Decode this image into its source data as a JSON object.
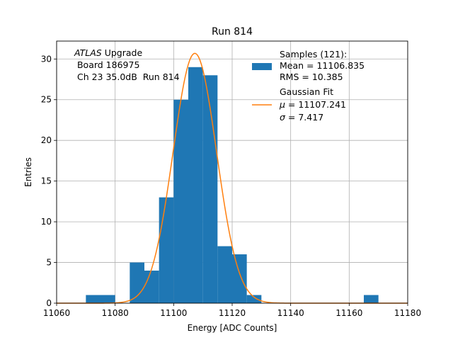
{
  "chart_data": {
    "type": "bar",
    "title": "Run 814",
    "xlabel": "Energy [ADC Counts]",
    "ylabel": "Entries",
    "xlim": [
      11060,
      11180
    ],
    "ylim": [
      0,
      32.2
    ],
    "xticks": [
      11060,
      11080,
      11100,
      11120,
      11140,
      11160,
      11180
    ],
    "yticks": [
      0,
      5,
      10,
      15,
      20,
      25,
      30
    ],
    "grid": true,
    "bin_width": 5,
    "histogram": {
      "bin_starts": [
        11070,
        11075,
        11080,
        11085,
        11090,
        11095,
        11100,
        11105,
        11110,
        11115,
        11120,
        11125,
        11130,
        11135,
        11140,
        11145,
        11150,
        11155,
        11160,
        11165
      ],
      "counts": [
        1,
        1,
        0,
        5,
        4,
        13,
        25,
        29,
        28,
        7,
        6,
        1,
        0,
        0,
        0,
        0,
        0,
        0,
        0,
        1
      ],
      "color": "#1f77b4"
    },
    "fit": {
      "mu": 11107.241,
      "sigma": 7.417,
      "peak": 30.7,
      "color": "#ff7f0e"
    },
    "annotation": {
      "atlas": "ATLAS",
      "upgrade": " Upgrade",
      "line2": " Board 186975",
      "line3": " Ch 23 35.0dB  Run 814"
    },
    "legend": {
      "placement": "top-right",
      "samples": {
        "line1": "Samples (121):",
        "line2": "Mean = 11106.835",
        "line3": "RMS = 10.385"
      },
      "fit": {
        "line1": "Gaussian Fit",
        "mu_symbol": "μ",
        "mu_text": " = 11107.241",
        "sigma_symbol": "σ",
        "sigma_text": " = 7.417"
      }
    }
  }
}
